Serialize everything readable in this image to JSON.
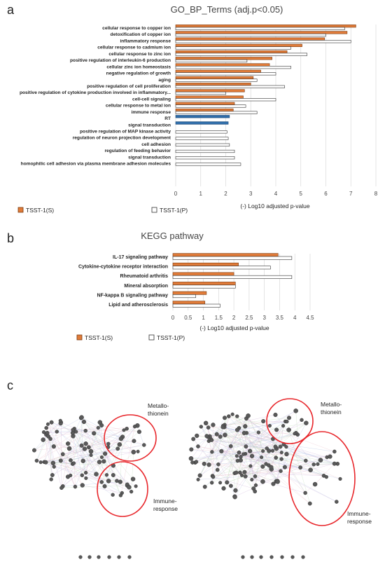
{
  "panel_labels": {
    "a": "a",
    "b": "b",
    "c": "c"
  },
  "colors": {
    "orange": "#e07b39",
    "orange_stroke": "#7a3b10",
    "white_bar": "#ffffff",
    "bar_stroke": "#333333",
    "blue": "#2e6ca8",
    "grid": "#d9d9d9",
    "node": "#595959",
    "circle": "#e8262b"
  },
  "chart_data": [
    {
      "type": "bar",
      "orientation": "horizontal",
      "title": "GO_BP_Terms (adj.p<0.05)",
      "xlabel": "(-) Log10 adjusted p-value",
      "xlim": [
        0,
        8
      ],
      "xticks": [
        "0",
        "1",
        "2",
        "3",
        "4",
        "5",
        "6",
        "7",
        "8"
      ],
      "grid": "vertical",
      "legend": {
        "placement": "bottom-left",
        "entries": [
          "TSST-1(S)",
          "TSST-1(P)"
        ]
      },
      "categories": [
        "cellular response to copper ion",
        "detoxification of copper ion",
        "inflammatory response",
        "cellular response to cadmium ion",
        "cellular response to zinc ion",
        "positive regulation of interleukin-6 production",
        "cellular zinc ion homeostasis",
        "negative regulation of growth",
        "aging",
        "positive regulation of cell proliferation",
        "positive regulation of cytokine production involved in inflammatory...",
        "cell-cell signaling",
        "cellular response to metal ion",
        "immune response",
        "RT",
        "signal transduction",
        "positive regulation of MAP kinase activity",
        "regulation of neuron projection development",
        "cell adhesion",
        "regulation of feeding behavior",
        "signal transduction",
        "homophilic cell adhesion via plasma membrane adhesion molecules"
      ],
      "series": [
        {
          "name": "TSST-1(S)",
          "values": [
            7.2,
            6.85,
            5.95,
            5.05,
            4.45,
            3.85,
            3.75,
            3.4,
            3.1,
            3.0,
            2.75,
            2.7,
            2.35,
            2.3,
            2.15,
            2.1,
            null,
            null,
            null,
            null,
            null,
            null
          ]
        },
        {
          "name": "TSST-1(P)",
          "values": [
            6.75,
            6.0,
            7.0,
            4.6,
            5.25,
            2.85,
            4.6,
            4.0,
            3.25,
            4.35,
            2.0,
            4.0,
            2.8,
            3.25,
            null,
            null,
            2.05,
            2.1,
            2.15,
            2.35,
            2.35,
            2.6
          ]
        }
      ],
      "highlight": {
        "categories": [
          "RT",
          "signal transduction"
        ],
        "color": "blue"
      }
    },
    {
      "type": "bar",
      "orientation": "horizontal",
      "title": "KEGG pathway",
      "xlabel": "(-) Log10 adjusted p-value",
      "xlim": [
        0,
        4.5
      ],
      "xticks": [
        "0",
        "0.5",
        "1",
        "1.5",
        "2",
        "2.5",
        "3",
        "3.5",
        "4",
        "4.5"
      ],
      "grid": "vertical",
      "legend": {
        "placement": "bottom-left",
        "entries": [
          "TSST-1(S)",
          "TSST-1(P)"
        ]
      },
      "categories": [
        "IL-17 signaling pathway",
        "Cytokine-cytokine receptor interaction",
        "Rheumatoid arthritis",
        "Mineral absorption",
        "NF-kappa B signaling pathway",
        "Lipid and atherosclerosis"
      ],
      "series": [
        {
          "name": "TSST-1(S)",
          "values": [
            3.45,
            2.15,
            2.0,
            2.05,
            1.1,
            1.05
          ]
        },
        {
          "name": "TSST-1(P)",
          "values": [
            3.9,
            3.2,
            3.9,
            2.05,
            0.75,
            1.55
          ]
        }
      ]
    }
  ],
  "network": {
    "left_labels": {
      "metallo": "Metallo-\nthionein",
      "immune": "Immune-\nresponse"
    },
    "right_labels": {
      "metallo": "Metallo-\nthionein",
      "immune": "Immune-\nresponse"
    }
  }
}
